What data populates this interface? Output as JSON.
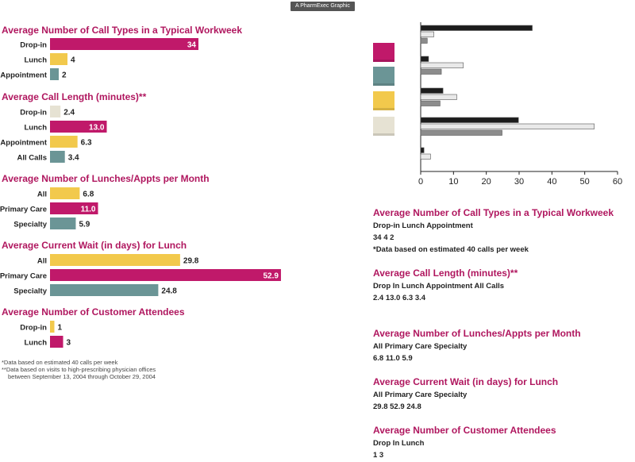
{
  "header": {
    "brand": "A PharmExec Graphic"
  },
  "colors": {
    "magenta": "#c0196a",
    "gold": "#f2c94c",
    "teal": "#6b9596",
    "cream": "#e6e2d3",
    "black": "#1c1c1c",
    "light": "#e9e9e9",
    "gray": "#8c8c8c"
  },
  "chart_data": [
    {
      "type": "bar",
      "title": "Average Number of Call Types in a Typical Workweek",
      "categories": [
        "Drop-in",
        "Lunch",
        "Appointment"
      ],
      "values": [
        34,
        4,
        2
      ],
      "labels": [
        "34",
        "4",
        "2"
      ],
      "colors": [
        "magenta",
        "gold",
        "teal"
      ]
    },
    {
      "type": "bar",
      "title": "Average Call Length (minutes)**",
      "categories": [
        "Drop-in",
        "Lunch",
        "Appointment",
        "All Calls"
      ],
      "values": [
        2.4,
        13.0,
        6.3,
        3.4
      ],
      "labels": [
        "2.4",
        "13.0",
        "6.3",
        "3.4"
      ],
      "colors": [
        "cream",
        "magenta",
        "gold",
        "teal"
      ]
    },
    {
      "type": "bar",
      "title": "Average Number of Lunches/Appts per Month",
      "categories": [
        "All",
        "Primary Care",
        "Specialty"
      ],
      "values": [
        6.8,
        11.0,
        5.9
      ],
      "labels": [
        "6.8",
        "11.0",
        "5.9"
      ],
      "colors": [
        "gold",
        "magenta",
        "teal"
      ]
    },
    {
      "type": "bar",
      "title": "Average Current Wait (in days) for Lunch",
      "categories": [
        "All",
        "Primary Care",
        "Specialty"
      ],
      "values": [
        29.8,
        52.9,
        24.8
      ],
      "labels": [
        "29.8",
        "52.9",
        "24.8"
      ],
      "colors": [
        "gold",
        "magenta",
        "teal"
      ]
    },
    {
      "type": "bar",
      "title": "Average Number of Customer Attendees",
      "categories": [
        "Drop-in",
        "Lunch"
      ],
      "values": [
        1,
        3
      ],
      "labels": [
        "1",
        "3"
      ],
      "colors": [
        "gold",
        "magenta"
      ]
    },
    {
      "type": "bar",
      "orientation": "horizontal",
      "xlim": [
        0,
        60
      ],
      "xticks": [
        0,
        10,
        20,
        30,
        40,
        50,
        60
      ],
      "legend_swatches": [
        "magenta",
        "teal",
        "gold",
        "cream"
      ],
      "series": [
        {
          "color": "black",
          "values": [
            34,
            2.4,
            6.8,
            29.8,
            1
          ]
        },
        {
          "color": "light",
          "values": [
            4,
            13.0,
            11.0,
            52.9,
            3
          ]
        },
        {
          "color": "gray",
          "values": [
            2,
            6.3,
            5.9,
            24.8,
            null
          ]
        }
      ]
    }
  ],
  "footnotes": [
    "*Data based on estimated 40 calls per week",
    "**Data based on visits to high-prescribing physician offices",
    "between September 13, 2004 through October 29, 2004"
  ],
  "right_text": [
    {
      "title": "Average Number of Call Types in a Typical Workweek",
      "lines": [
        "Drop-in Lunch Appointment",
        "34 4 2",
        "*Data based on estimated 40 calls per week"
      ]
    },
    {
      "title": "Average Call Length (minutes)**",
      "lines": [
        "Drop In Lunch Appointment All Calls",
        "2.4 13.0 6.3 3.4"
      ]
    },
    {
      "title": "Average Number of Lunches/Appts per Month",
      "lines": [
        "All Primary Care Specialty",
        "6.8 11.0 5.9"
      ]
    },
    {
      "title": "Average Current Wait (in days) for Lunch",
      "lines": [
        "All Primary Care Specialty",
        "29.8 52.9 24.8"
      ]
    },
    {
      "title": "Average Number of Customer Attendees",
      "lines": [
        "Drop In Lunch",
        "1 3"
      ]
    }
  ]
}
